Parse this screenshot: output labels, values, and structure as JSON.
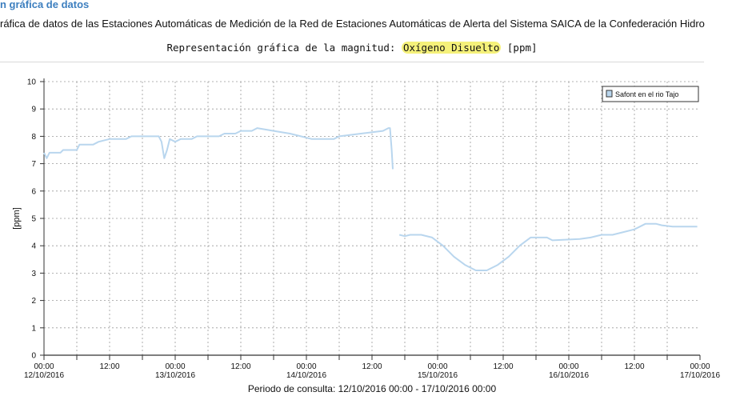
{
  "header": {
    "title": "n gráfica de datos",
    "description": "ráfica de datos de las Estaciones Automáticas de Medición de la Red de Estaciones Automáticas de Alerta del Sistema SAICA de la Confederación Hidro",
    "magnitude_prefix": "Representación gráfica de la magnitud: ",
    "magnitude_name": "Oxígeno Disuelto",
    "magnitude_unit": " [ppm]"
  },
  "footer": {
    "period": "Periodo de consulta: 12/10/2016 00:00 - 17/10/2016 00:00"
  },
  "colors": {
    "series": "#b9d6ee",
    "highlight": "#f5f17a",
    "title": "#3d7fbf"
  },
  "chart_data": {
    "type": "line",
    "title": "",
    "xlabel": "",
    "ylabel": "[ppm]",
    "ylim": [
      0,
      10
    ],
    "yticks": [
      "0",
      "1",
      "2",
      "3",
      "4",
      "5",
      "6",
      "7",
      "8",
      "9",
      "10"
    ],
    "xlim_hours": [
      0,
      120
    ],
    "xticks": [
      {
        "hour": 0,
        "time": "00:00",
        "date": "12/10/2016"
      },
      {
        "hour": 12,
        "time": "12:00",
        "date": ""
      },
      {
        "hour": 24,
        "time": "00:00",
        "date": "13/10/2016"
      },
      {
        "hour": 36,
        "time": "12:00",
        "date": ""
      },
      {
        "hour": 48,
        "time": "00:00",
        "date": "14/10/2016"
      },
      {
        "hour": 60,
        "time": "12:00",
        "date": ""
      },
      {
        "hour": 72,
        "time": "00:00",
        "date": "15/10/2016"
      },
      {
        "hour": 84,
        "time": "12:00",
        "date": ""
      },
      {
        "hour": 96,
        "time": "00:00",
        "date": "16/10/2016"
      },
      {
        "hour": 108,
        "time": "12:00",
        "date": ""
      },
      {
        "hour": 120,
        "time": "00:00",
        "date": "17/10/2016"
      }
    ],
    "grid": true,
    "legend_position": "top-right",
    "series": [
      {
        "name": "Safont en el rio Tajo",
        "segments": [
          [
            [
              0,
              7.4
            ],
            [
              0.5,
              7.2
            ],
            [
              1,
              7.4
            ],
            [
              3,
              7.4
            ],
            [
              3.5,
              7.5
            ],
            [
              6,
              7.5
            ],
            [
              6.5,
              7.7
            ],
            [
              9,
              7.7
            ],
            [
              10,
              7.8
            ],
            [
              12,
              7.9
            ],
            [
              15,
              7.9
            ],
            [
              16,
              8.0
            ],
            [
              21,
              8.0
            ],
            [
              21.5,
              7.8
            ],
            [
              22,
              7.2
            ],
            [
              22.5,
              7.5
            ],
            [
              23,
              7.9
            ],
            [
              24,
              7.8
            ],
            [
              25,
              7.9
            ],
            [
              27,
              7.9
            ],
            [
              28,
              8.0
            ],
            [
              32,
              8.0
            ],
            [
              33,
              8.1
            ],
            [
              35,
              8.1
            ],
            [
              36,
              8.2
            ],
            [
              38,
              8.2
            ],
            [
              39,
              8.3
            ],
            [
              42,
              8.2
            ],
            [
              45,
              8.1
            ],
            [
              47,
              8.0
            ],
            [
              49,
              7.9
            ],
            [
              53,
              7.9
            ],
            [
              54,
              8.0
            ],
            [
              58,
              8.1
            ],
            [
              62,
              8.2
            ],
            [
              63,
              8.3
            ],
            [
              63.3,
              8.3
            ],
            [
              63.6,
              7.5
            ],
            [
              63.8,
              6.8
            ]
          ],
          [
            [
              65,
              4.4
            ],
            [
              66,
              4.35
            ],
            [
              67,
              4.4
            ],
            [
              69,
              4.4
            ],
            [
              71,
              4.3
            ],
            [
              73,
              4.0
            ],
            [
              75,
              3.6
            ],
            [
              77,
              3.3
            ],
            [
              79,
              3.1
            ],
            [
              81,
              3.1
            ],
            [
              83,
              3.3
            ],
            [
              85,
              3.6
            ],
            [
              87,
              4.0
            ],
            [
              89,
              4.3
            ],
            [
              92,
              4.3
            ],
            [
              93,
              4.2
            ],
            [
              98,
              4.25
            ],
            [
              100,
              4.3
            ],
            [
              102,
              4.4
            ],
            [
              104,
              4.4
            ],
            [
              106,
              4.5
            ],
            [
              108,
              4.6
            ],
            [
              109,
              4.7
            ],
            [
              110,
              4.8
            ],
            [
              112,
              4.8
            ],
            [
              113,
              4.75
            ],
            [
              115,
              4.7
            ],
            [
              118,
              4.7
            ],
            [
              119.5,
              4.7
            ]
          ]
        ]
      }
    ]
  }
}
